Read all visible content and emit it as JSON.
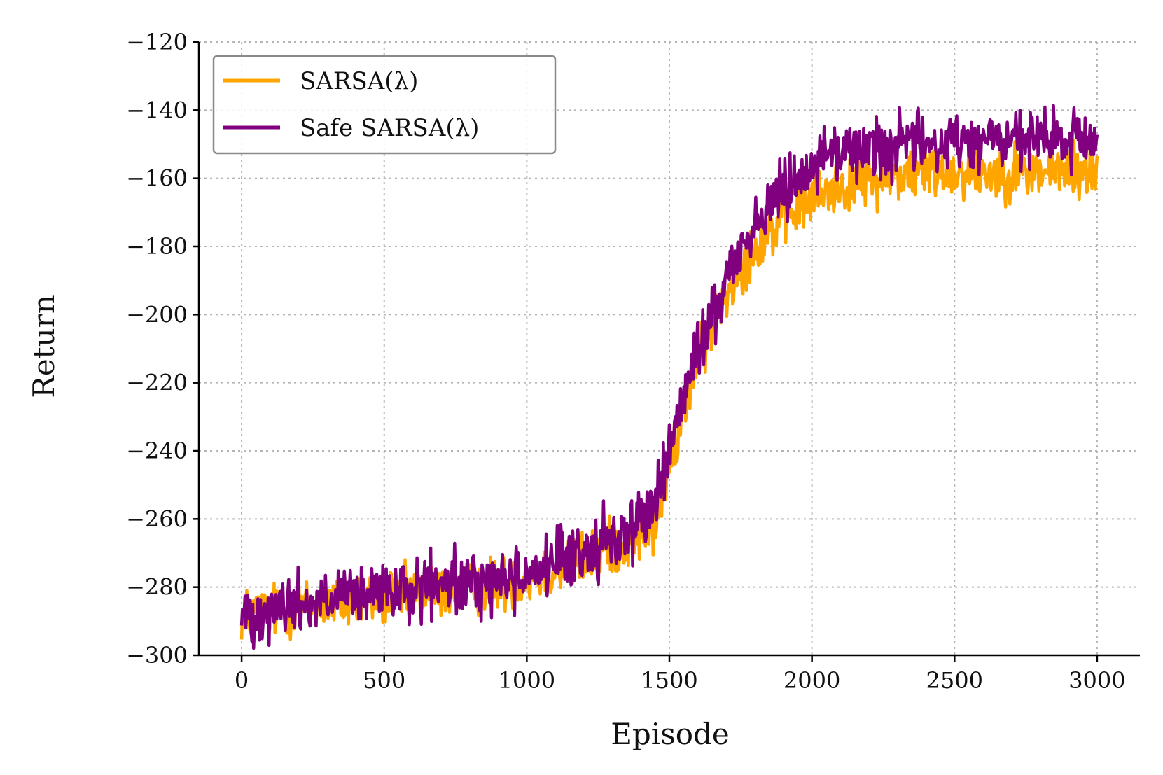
{
  "chart_data": {
    "type": "line",
    "title": "",
    "xlabel": "Episode",
    "ylabel": "Return",
    "xlim": [
      -150,
      3150
    ],
    "ylim": [
      -300,
      -120
    ],
    "xticks": [
      0,
      500,
      1000,
      1500,
      2000,
      2500,
      3000
    ],
    "yticks": [
      -300,
      -280,
      -260,
      -240,
      -220,
      -200,
      -180,
      -160,
      -140,
      -120
    ],
    "xtick_labels": [
      "0",
      "500",
      "1000",
      "1500",
      "2000",
      "2500",
      "3000"
    ],
    "ytick_labels": [
      "−300",
      "−280",
      "−260",
      "−240",
      "−220",
      "−200",
      "−180",
      "−160",
      "−140",
      "−120"
    ],
    "grid": true,
    "legend_position": "top-left",
    "x": [
      0,
      100,
      200,
      300,
      400,
      500,
      600,
      700,
      800,
      900,
      1000,
      1100,
      1200,
      1300,
      1400,
      1450,
      1500,
      1550,
      1600,
      1650,
      1700,
      1750,
      1800,
      1900,
      2000,
      2100,
      2200,
      2300,
      2400,
      2500,
      2600,
      2700,
      2800,
      2900,
      3000
    ],
    "series": [
      {
        "name": "SARSA(λ)",
        "color": "#FFA500",
        "noise": 4,
        "values": [
          -288,
          -287,
          -286,
          -285,
          -284,
          -283,
          -282,
          -281,
          -280,
          -279,
          -277,
          -275,
          -272,
          -268,
          -265,
          -262,
          -245,
          -228,
          -214,
          -203,
          -193,
          -186,
          -180,
          -172,
          -166,
          -162,
          -160,
          -159,
          -158,
          -158,
          -158,
          -158,
          -158,
          -158,
          -158
        ]
      },
      {
        "name": "Safe SARSA(λ)",
        "color": "#800080",
        "noise": 4.5,
        "values": [
          -288,
          -286,
          -285,
          -284,
          -283,
          -282,
          -281,
          -280,
          -279,
          -278,
          -276,
          -273,
          -270,
          -266,
          -260,
          -255,
          -240,
          -225,
          -210,
          -200,
          -190,
          -180,
          -174,
          -163,
          -155,
          -152,
          -151,
          -150,
          -150,
          -149,
          -149,
          -149,
          -149,
          -149,
          -149
        ]
      }
    ]
  }
}
